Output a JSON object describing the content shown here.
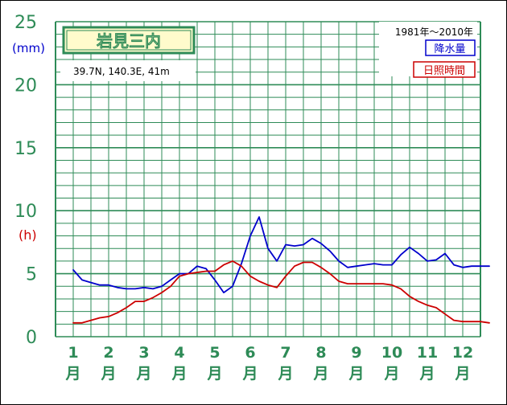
{
  "chart_data": {
    "type": "line",
    "title": "岩見三内",
    "subtitle": "39.7N,  140.3E,  41m",
    "period": "1981年〜2010年",
    "y_unit_left": "(mm)",
    "y_unit_right": "(h)",
    "ylim": [
      0,
      25
    ],
    "yticks": [
      "25",
      "20",
      "15",
      "10",
      "5",
      "0"
    ],
    "yticks_values": [
      25,
      20,
      15,
      10,
      5,
      0
    ],
    "categories": [
      "1",
      "2",
      "3",
      "4",
      "5",
      "6",
      "7",
      "8",
      "9",
      "10",
      "11",
      "12"
    ],
    "month_suffix": "月",
    "series": [
      {
        "name": "降水量",
        "color": "#0000cc",
        "x": [
          1.0,
          1.25,
          1.5,
          1.75,
          2.0,
          2.25,
          2.5,
          2.75,
          3.0,
          3.25,
          3.5,
          3.75,
          4.0,
          4.25,
          4.5,
          4.75,
          5.0,
          5.25,
          5.5,
          5.75,
          6.0,
          6.25,
          6.5,
          6.75,
          7.0,
          7.25,
          7.5,
          7.75,
          8.0,
          8.25,
          8.5,
          8.75,
          9.0,
          9.25,
          9.5,
          9.75,
          10.0,
          10.25,
          10.5,
          10.75,
          11.0,
          11.25,
          11.5,
          11.75,
          12.0,
          12.25,
          12.5,
          12.75
        ],
        "values": [
          5.3,
          4.5,
          4.3,
          4.1,
          4.1,
          3.9,
          3.8,
          3.8,
          3.9,
          3.8,
          4.0,
          4.5,
          5.0,
          5.0,
          5.6,
          5.4,
          4.5,
          3.5,
          4.0,
          5.8,
          8.0,
          9.5,
          7.0,
          6.0,
          7.3,
          7.2,
          7.3,
          7.8,
          7.4,
          6.8,
          6.0,
          5.5,
          5.6,
          5.7,
          5.8,
          5.7,
          5.7,
          6.5,
          7.1,
          6.6,
          6.0,
          6.1,
          6.6,
          5.7,
          5.5,
          5.6,
          5.6,
          5.6
        ],
        "legend_label": "降水量"
      },
      {
        "name": "日照時間",
        "color": "#cc0000",
        "x": [
          1.0,
          1.25,
          1.5,
          1.75,
          2.0,
          2.25,
          2.5,
          2.75,
          3.0,
          3.25,
          3.5,
          3.75,
          4.0,
          4.25,
          4.5,
          4.75,
          5.0,
          5.25,
          5.5,
          5.75,
          6.0,
          6.25,
          6.5,
          6.75,
          7.0,
          7.25,
          7.5,
          7.75,
          8.0,
          8.25,
          8.5,
          8.75,
          9.0,
          9.25,
          9.5,
          9.75,
          10.0,
          10.25,
          10.5,
          10.75,
          11.0,
          11.25,
          11.5,
          11.75,
          12.0,
          12.25,
          12.5,
          12.75
        ],
        "values": [
          1.1,
          1.1,
          1.3,
          1.5,
          1.6,
          1.9,
          2.3,
          2.8,
          2.8,
          3.1,
          3.5,
          4.0,
          4.8,
          5.0,
          5.1,
          5.2,
          5.2,
          5.7,
          6.0,
          5.6,
          4.8,
          4.4,
          4.1,
          3.9,
          4.8,
          5.6,
          5.9,
          5.9,
          5.5,
          5.0,
          4.4,
          4.2,
          4.2,
          4.2,
          4.2,
          4.2,
          4.1,
          3.8,
          3.2,
          2.8,
          2.5,
          2.3,
          1.8,
          1.3,
          1.2,
          1.2,
          1.2,
          1.1
        ],
        "legend_label": "日照時間"
      }
    ],
    "grid": true,
    "legend_position": "top-right"
  },
  "colors": {
    "axis_green": "#2e8b57",
    "precip_blue": "#0000cc",
    "sun_red": "#cc0000",
    "title_bg": "#fffbcc"
  }
}
